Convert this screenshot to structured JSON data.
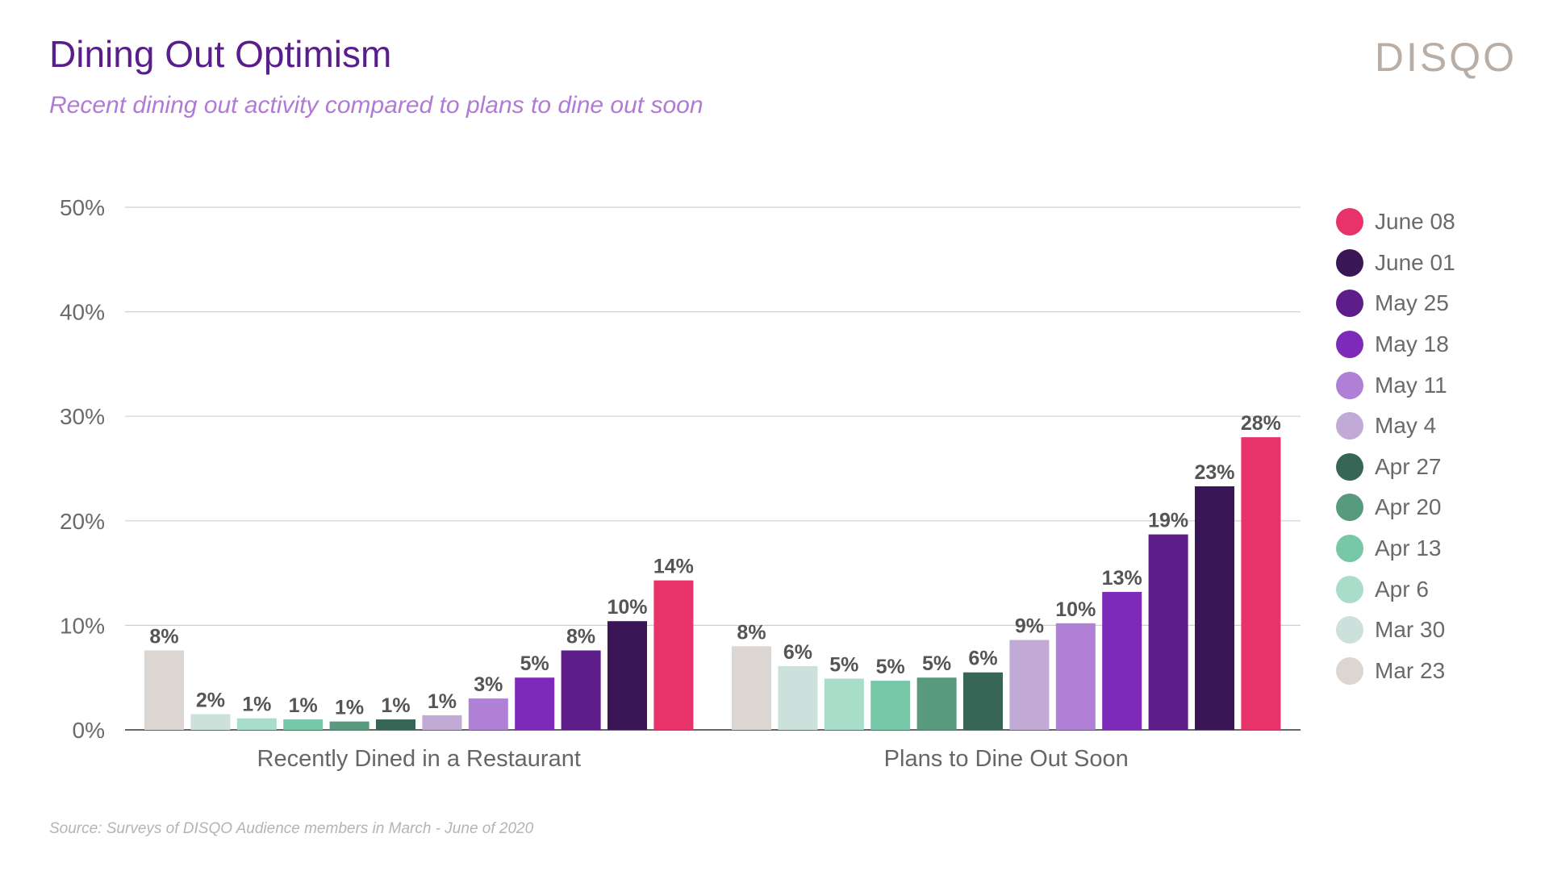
{
  "header": {
    "title": "Dining Out Optimism",
    "subtitle": "Recent dining out activity compared to plans to dine out soon",
    "logo": "DISQO"
  },
  "footer": {
    "source": "Source: Surveys of DISQO Audience members in March - June of 2020"
  },
  "chart_data": {
    "type": "bar",
    "title": "Dining Out Optimism",
    "subtitle": "Recent dining out activity compared to plans to dine out soon",
    "xlabel": "",
    "ylabel": "",
    "ylim": [
      0,
      50
    ],
    "yticks": [
      0,
      10,
      20,
      30,
      40,
      50
    ],
    "ytick_labels": [
      "0%",
      "10%",
      "20%",
      "30%",
      "40%",
      "50%"
    ],
    "grid": true,
    "legend_position": "right",
    "categories": [
      "Recently Dined in a Restaurant",
      "Plans to Dine Out Soon"
    ],
    "series": [
      {
        "name": "Mar 23",
        "color": "#dcd6d2",
        "values": [
          7.6,
          8.0
        ],
        "labels": [
          "8%",
          "8%"
        ]
      },
      {
        "name": "Mar 30",
        "color": "#cce0dc",
        "values": [
          1.5,
          6.1
        ],
        "labels": [
          "2%",
          "6%"
        ]
      },
      {
        "name": "Apr 6",
        "color": "#a8dec9",
        "values": [
          1.1,
          4.9
        ],
        "labels": [
          "1%",
          "5%"
        ]
      },
      {
        "name": "Apr 13",
        "color": "#77c8a8",
        "values": [
          1.0,
          4.7
        ],
        "labels": [
          "1%",
          "5%"
        ]
      },
      {
        "name": "Apr 20",
        "color": "#579a7e",
        "values": [
          0.8,
          5.0
        ],
        "labels": [
          "1%",
          "5%"
        ]
      },
      {
        "name": "Apr 27",
        "color": "#386656",
        "values": [
          1.0,
          5.5
        ],
        "labels": [
          "1%",
          "6%"
        ]
      },
      {
        "name": "May 4",
        "color": "#c2aad6",
        "values": [
          1.4,
          8.6
        ],
        "labels": [
          "1%",
          "9%"
        ]
      },
      {
        "name": "May 11",
        "color": "#b07fd6",
        "values": [
          3.0,
          10.2
        ],
        "labels": [
          "3%",
          "10%"
        ]
      },
      {
        "name": "May 18",
        "color": "#7e2ab8",
        "values": [
          5.0,
          13.2
        ],
        "labels": [
          "5%",
          "13%"
        ]
      },
      {
        "name": "May 25",
        "color": "#5e1e8a",
        "values": [
          7.6,
          18.7
        ],
        "labels": [
          "8%",
          "19%"
        ]
      },
      {
        "name": "June 01",
        "color": "#3b1657",
        "values": [
          10.4,
          23.3
        ],
        "labels": [
          "10%",
          "23%"
        ]
      },
      {
        "name": "June 08",
        "color": "#e8336a",
        "values": [
          14.3,
          28.0
        ],
        "labels": [
          "14%",
          "28%"
        ]
      }
    ],
    "legend_order": [
      "June 08",
      "June 01",
      "May 25",
      "May 18",
      "May 11",
      "May 4",
      "Apr 27",
      "Apr 20",
      "Apr 13",
      "Apr 6",
      "Mar 30",
      "Mar 23"
    ]
  }
}
